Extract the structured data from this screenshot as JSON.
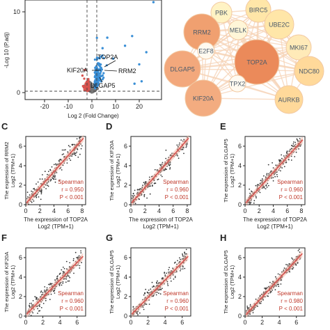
{
  "volcano": {
    "ylabel": "-Log 10 (P.adj)",
    "xlabel": "Log 2 (Fold Change)",
    "xticks": [
      "-20",
      "-10",
      "0",
      "10",
      "20"
    ],
    "yticks": [
      "0",
      "10"
    ],
    "gene_labels": [
      "TOP2A",
      "KIF20A",
      "RRM2",
      "DLGAP5"
    ],
    "colors": {
      "up": "#3a8fd6",
      "down": "#d9534f",
      "ns": "#777777"
    }
  },
  "network": {
    "nodes": [
      {
        "id": "PBK",
        "label": "PBK",
        "color": "#fff3c4"
      },
      {
        "id": "BIRC5",
        "label": "BIRC5",
        "color": "#ffe6a8"
      },
      {
        "id": "RRM2",
        "label": "RRM2",
        "color": "#f0a070"
      },
      {
        "id": "MELK",
        "label": "MELK",
        "color": "#fff6d8"
      },
      {
        "id": "UBE2C",
        "label": "UBE2C",
        "color": "#ffe6a8"
      },
      {
        "id": "E2F8",
        "label": "E2F8",
        "color": "#fffaf0"
      },
      {
        "id": "TOP2A",
        "label": "TOP2A",
        "color": "#eb8a5a"
      },
      {
        "id": "MKI67",
        "label": "MKI67",
        "color": "#ffeab8"
      },
      {
        "id": "DLGAP5",
        "label": "DLGAP5",
        "color": "#f3a87c"
      },
      {
        "id": "TPX2",
        "label": "TPX2",
        "color": "#fffaf0"
      },
      {
        "id": "NDC80",
        "label": "NDC80",
        "color": "#ffd99a"
      },
      {
        "id": "KIF20A",
        "label": "KIF20A",
        "color": "#f3ac80"
      },
      {
        "id": "AURKB",
        "label": "AURKB",
        "color": "#ffd99a"
      }
    ],
    "edge_color": "#f6d2b4"
  },
  "chart_data": [
    {
      "panel": "C",
      "type": "scatter",
      "ylabel_top": "The expression of RRM2",
      "ylabel_bottom": "Log2 (TPM+1)",
      "xlabel_top": "The expression of TOP2A",
      "xlabel_bottom": "Log2 (TPM+1)",
      "xlim": [
        0,
        8.5
      ],
      "ylim": [
        0,
        7
      ],
      "xticks": [
        "0",
        "2",
        "4",
        "6",
        "8"
      ],
      "yticks": [
        "0",
        "2",
        "4",
        "6"
      ],
      "stats": [
        "Spearman",
        "r = 0.950",
        "P < 0.001"
      ],
      "slope": 0.82,
      "intercept": 0.1,
      "spread": 0.45,
      "n": 260
    },
    {
      "panel": "D",
      "type": "scatter",
      "ylabel_top": "The expression of KIF20A",
      "ylabel_bottom": "Log2 (TPM+1)",
      "xlabel_top": "The expression of TOP2A",
      "xlabel_bottom": "Log2 (TPM+1)",
      "xlim": [
        0,
        8.5
      ],
      "ylim": [
        0,
        7
      ],
      "xticks": [
        "0",
        "2",
        "4",
        "6",
        "8"
      ],
      "yticks": [
        "0",
        "2",
        "4",
        "6"
      ],
      "stats": [
        "Spearman",
        "r = 0.960",
        "P < 0.001"
      ],
      "slope": 0.82,
      "intercept": 0.1,
      "spread": 0.4,
      "n": 260
    },
    {
      "panel": "E",
      "type": "scatter",
      "ylabel_top": "The expression of DLGAP5",
      "ylabel_bottom": "Log2 (TPM+1)",
      "xlabel_top": "The expression of TOP2A",
      "xlabel_bottom": "Log2 (TPM+1)",
      "xlim": [
        0,
        8.5
      ],
      "ylim": [
        0,
        7
      ],
      "xticks": [
        "0",
        "2",
        "4",
        "6",
        "8"
      ],
      "yticks": [
        "0",
        "2",
        "4",
        "6"
      ],
      "stats": [
        "Spearman",
        "r = 0.960",
        "P < 0.001"
      ],
      "slope": 0.8,
      "intercept": 0.1,
      "spread": 0.4,
      "n": 260
    },
    {
      "panel": "F",
      "type": "scatter",
      "ylabel_top": "The expression of KIF20A",
      "ylabel_bottom": "Log2 (TPM+1)",
      "xlim": [
        0,
        7
      ],
      "ylim": [
        0,
        7
      ],
      "xticks": [
        "0",
        "2",
        "4",
        "6"
      ],
      "yticks": [
        "0",
        "2",
        "4",
        "6"
      ],
      "stats": [
        "Spearman",
        "r = 0.960",
        "P < 0.001"
      ],
      "slope": 0.9,
      "intercept": 0.1,
      "spread": 0.4,
      "n": 260
    },
    {
      "panel": "G",
      "type": "scatter",
      "ylabel_top": "The expression of DLGAP5",
      "ylabel_bottom": "Log2 (TPM+1)",
      "xlim": [
        0,
        7
      ],
      "ylim": [
        0,
        7
      ],
      "xticks": [
        "0",
        "2",
        "4",
        "6"
      ],
      "yticks": [
        "0",
        "2",
        "4",
        "6"
      ],
      "stats": [
        "Spearman",
        "r = 0.960",
        "P < 0.001"
      ],
      "slope": 0.9,
      "intercept": 0.1,
      "spread": 0.4,
      "n": 260
    },
    {
      "panel": "H",
      "type": "scatter",
      "ylabel_top": "The expression of DLGAP5",
      "ylabel_bottom": "Log2 (TPM+1)",
      "xlim": [
        0,
        7
      ],
      "ylim": [
        0,
        7
      ],
      "xticks": [
        "0",
        "2",
        "4",
        "6"
      ],
      "yticks": [
        "0",
        "2",
        "4",
        "6"
      ],
      "stats": [
        "Spearman",
        "r = 0.980",
        "P < 0.001"
      ],
      "slope": 0.95,
      "intercept": 0.05,
      "spread": 0.3,
      "n": 260
    }
  ]
}
